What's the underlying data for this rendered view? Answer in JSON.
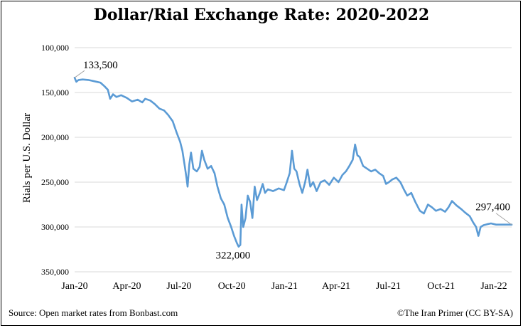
{
  "chart_data": {
    "type": "line",
    "title": "Dollar/Rial Exchange Rate: 2020-2022",
    "ylabel": "Rials per U.S. Dollar",
    "xlabel": "",
    "y_inverted": true,
    "ylim": [
      100000,
      350000
    ],
    "yticks": [
      {
        "value": 100000,
        "label": "100,000"
      },
      {
        "value": 150000,
        "label": "150,000"
      },
      {
        "value": 200000,
        "label": "200,000"
      },
      {
        "value": 250000,
        "label": "250,000"
      },
      {
        "value": 300000,
        "label": "300,000"
      },
      {
        "value": 350000,
        "label": "350,000"
      }
    ],
    "xticks": [
      {
        "date": "2020-01-01",
        "label": "Jan-20"
      },
      {
        "date": "2020-04-01",
        "label": "Apr-20"
      },
      {
        "date": "2020-07-01",
        "label": "Jul-20"
      },
      {
        "date": "2020-10-01",
        "label": "Oct-20"
      },
      {
        "date": "2021-01-01",
        "label": "Jan-21"
      },
      {
        "date": "2021-04-01",
        "label": "Apr-21"
      },
      {
        "date": "2021-07-01",
        "label": "Jul-21"
      },
      {
        "date": "2021-10-01",
        "label": "Oct-21"
      },
      {
        "date": "2022-01-01",
        "label": "Jan-22"
      }
    ],
    "xlim": [
      "2020-01-01",
      "2022-02-01"
    ],
    "grid": true,
    "line_color": "#5b9bd5",
    "series": [
      {
        "points": [
          [
            "2020-01-01",
            133500
          ],
          [
            "2020-01-04",
            138000
          ],
          [
            "2020-01-08",
            136000
          ],
          [
            "2020-01-15",
            135500
          ],
          [
            "2020-01-25",
            136000
          ],
          [
            "2020-02-05",
            137500
          ],
          [
            "2020-02-15",
            139000
          ],
          [
            "2020-02-22",
            143000
          ],
          [
            "2020-02-28",
            147000
          ],
          [
            "2020-03-03",
            157000
          ],
          [
            "2020-03-08",
            152000
          ],
          [
            "2020-03-14",
            155000
          ],
          [
            "2020-03-22",
            153000
          ],
          [
            "2020-04-01",
            156000
          ],
          [
            "2020-04-10",
            160000
          ],
          [
            "2020-04-20",
            158000
          ],
          [
            "2020-04-28",
            161000
          ],
          [
            "2020-05-03",
            157000
          ],
          [
            "2020-05-12",
            159000
          ],
          [
            "2020-05-20",
            163000
          ],
          [
            "2020-05-28",
            168000
          ],
          [
            "2020-06-05",
            170000
          ],
          [
            "2020-06-12",
            175000
          ],
          [
            "2020-06-20",
            182000
          ],
          [
            "2020-06-27",
            195000
          ],
          [
            "2020-07-03",
            205000
          ],
          [
            "2020-07-07",
            215000
          ],
          [
            "2020-07-11",
            232000
          ],
          [
            "2020-07-14",
            245000
          ],
          [
            "2020-07-16",
            255000
          ],
          [
            "2020-07-19",
            230000
          ],
          [
            "2020-07-22",
            217000
          ],
          [
            "2020-07-26",
            235000
          ],
          [
            "2020-08-01",
            238000
          ],
          [
            "2020-08-06",
            233000
          ],
          [
            "2020-08-10",
            215000
          ],
          [
            "2020-08-14",
            225000
          ],
          [
            "2020-08-20",
            235000
          ],
          [
            "2020-08-26",
            232000
          ],
          [
            "2020-09-01",
            240000
          ],
          [
            "2020-09-06",
            255000
          ],
          [
            "2020-09-12",
            268000
          ],
          [
            "2020-09-18",
            275000
          ],
          [
            "2020-09-24",
            290000
          ],
          [
            "2020-09-30",
            300000
          ],
          [
            "2020-10-05",
            310000
          ],
          [
            "2020-10-10",
            318000
          ],
          [
            "2020-10-13",
            322000
          ],
          [
            "2020-10-16",
            320000
          ],
          [
            "2020-10-18",
            275000
          ],
          [
            "2020-10-21",
            300000
          ],
          [
            "2020-10-25",
            290000
          ],
          [
            "2020-10-29",
            265000
          ],
          [
            "2020-11-02",
            272000
          ],
          [
            "2020-11-06",
            290000
          ],
          [
            "2020-11-10",
            255000
          ],
          [
            "2020-11-14",
            270000
          ],
          [
            "2020-11-19",
            262000
          ],
          [
            "2020-11-24",
            252000
          ],
          [
            "2020-11-28",
            262000
          ],
          [
            "2020-12-03",
            258000
          ],
          [
            "2020-12-12",
            260000
          ],
          [
            "2020-12-22",
            257000
          ],
          [
            "2020-12-31",
            259000
          ],
          [
            "2021-01-05",
            250000
          ],
          [
            "2021-01-10",
            240000
          ],
          [
            "2021-01-14",
            215000
          ],
          [
            "2021-01-18",
            235000
          ],
          [
            "2021-01-22",
            238000
          ],
          [
            "2021-01-27",
            252000
          ],
          [
            "2021-02-01",
            262000
          ],
          [
            "2021-02-06",
            250000
          ],
          [
            "2021-02-10",
            236000
          ],
          [
            "2021-02-15",
            255000
          ],
          [
            "2021-02-20",
            250000
          ],
          [
            "2021-02-26",
            260000
          ],
          [
            "2021-03-05",
            250000
          ],
          [
            "2021-03-12",
            248000
          ],
          [
            "2021-03-20",
            253000
          ],
          [
            "2021-03-28",
            245000
          ],
          [
            "2021-04-05",
            250000
          ],
          [
            "2021-04-12",
            242000
          ],
          [
            "2021-04-18",
            238000
          ],
          [
            "2021-04-24",
            232000
          ],
          [
            "2021-04-30",
            225000
          ],
          [
            "2021-05-04",
            208000
          ],
          [
            "2021-05-08",
            220000
          ],
          [
            "2021-05-12",
            222000
          ],
          [
            "2021-05-18",
            232000
          ],
          [
            "2021-05-25",
            235000
          ],
          [
            "2021-06-01",
            238000
          ],
          [
            "2021-06-08",
            236000
          ],
          [
            "2021-06-15",
            240000
          ],
          [
            "2021-06-22",
            243000
          ],
          [
            "2021-06-27",
            252000
          ],
          [
            "2021-07-02",
            250000
          ],
          [
            "2021-07-08",
            247000
          ],
          [
            "2021-07-15",
            245000
          ],
          [
            "2021-07-22",
            250000
          ],
          [
            "2021-07-28",
            258000
          ],
          [
            "2021-08-03",
            265000
          ],
          [
            "2021-08-10",
            262000
          ],
          [
            "2021-08-17",
            272000
          ],
          [
            "2021-08-25",
            282000
          ],
          [
            "2021-09-01",
            285000
          ],
          [
            "2021-09-08",
            275000
          ],
          [
            "2021-09-15",
            278000
          ],
          [
            "2021-09-22",
            282000
          ],
          [
            "2021-09-30",
            280000
          ],
          [
            "2021-10-08",
            283000
          ],
          [
            "2021-10-14",
            278000
          ],
          [
            "2021-10-20",
            271000
          ],
          [
            "2021-10-28",
            276000
          ],
          [
            "2021-11-05",
            280000
          ],
          [
            "2021-11-12",
            284000
          ],
          [
            "2021-11-20",
            288000
          ],
          [
            "2021-11-26",
            295000
          ],
          [
            "2021-12-01",
            300000
          ],
          [
            "2021-12-05",
            310000
          ],
          [
            "2021-12-09",
            300000
          ],
          [
            "2021-12-14",
            298000
          ],
          [
            "2021-12-20",
            297000
          ],
          [
            "2021-12-27",
            296000
          ],
          [
            "2022-01-05",
            297400
          ],
          [
            "2022-01-15",
            297400
          ],
          [
            "2022-01-25",
            297400
          ],
          [
            "2022-02-01",
            297400
          ]
        ]
      }
    ],
    "annotations": [
      {
        "label": "133,500",
        "date": "2020-01-01",
        "value": 133500
      },
      {
        "label": "322,000",
        "date": "2020-10-13",
        "value": 322000
      },
      {
        "label": "297,400",
        "date": "2022-02-01",
        "value": 297400
      }
    ]
  },
  "footer": {
    "source": "Source: Open market rates from Bonbast.com",
    "credit": "©The Iran Primer (CC BY-SA)"
  }
}
